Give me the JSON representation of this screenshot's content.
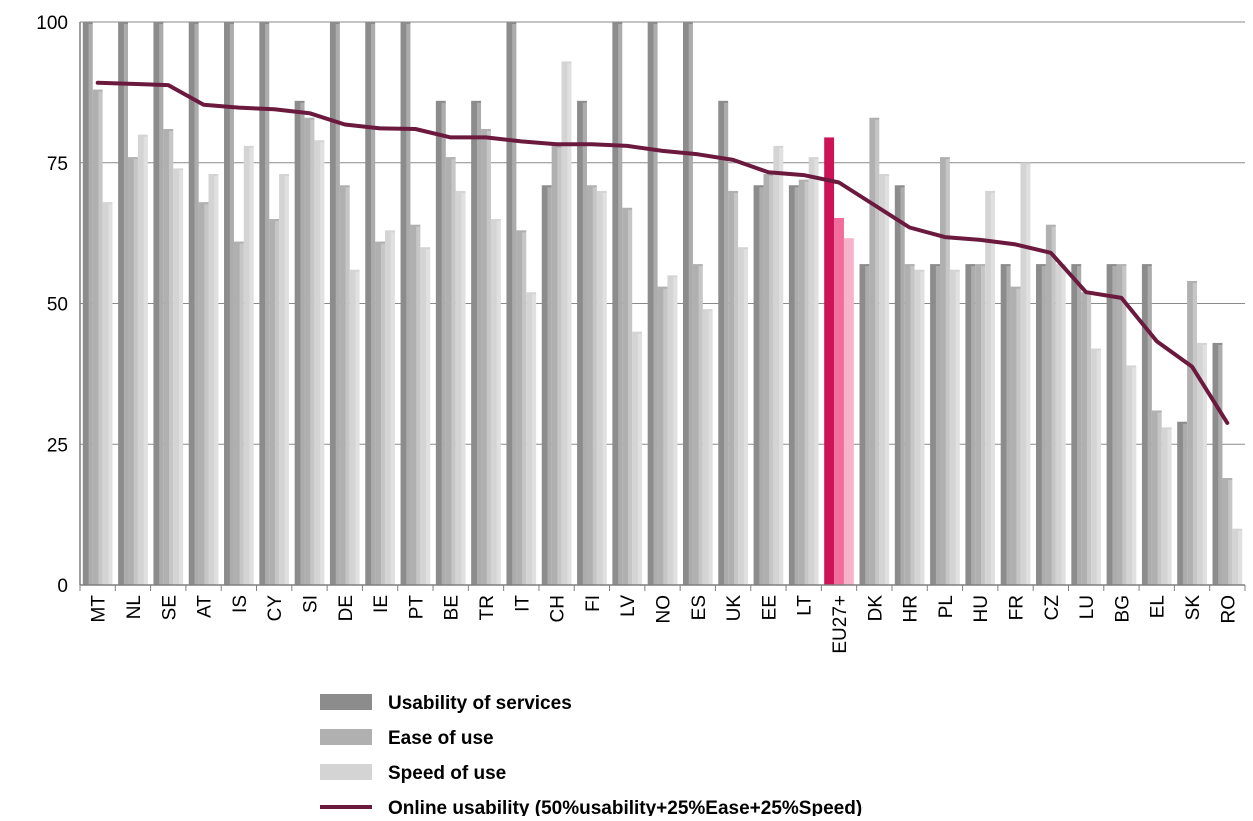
{
  "chart_data": {
    "type": "bar",
    "categories": [
      "MT",
      "NL",
      "SE",
      "AT",
      "IS",
      "CY",
      "SI",
      "DE",
      "IE",
      "PT",
      "BE",
      "TR",
      "IT",
      "CH",
      "FI",
      "LV",
      "NO",
      "ES",
      "UK",
      "EE",
      "LT",
      "EU27+",
      "DK",
      "HR",
      "PL",
      "HU",
      "FR",
      "CZ",
      "LU",
      "BG",
      "EL",
      "SK",
      "RO"
    ],
    "highlight_category": "EU27+",
    "series": [
      {
        "name": "Usability of services",
        "type": "bar",
        "color": "#8c8c8c",
        "highlight_color": "#cc1456",
        "values": [
          100,
          100,
          100,
          100,
          100,
          100,
          86,
          100,
          100,
          100,
          86,
          86,
          100,
          71,
          86,
          100,
          100,
          100,
          86,
          71,
          71,
          79.5,
          57,
          71,
          57,
          57,
          57,
          57,
          57,
          57,
          57,
          29,
          43
        ]
      },
      {
        "name": "Ease of use",
        "type": "bar",
        "color": "#b0b0b0",
        "highlight_color": "#f26d9a",
        "values": [
          88,
          76,
          81,
          68,
          61,
          65,
          83,
          71,
          61,
          64,
          76,
          81,
          63,
          78,
          71,
          67,
          53,
          57,
          70,
          73,
          72,
          65.2,
          83,
          57,
          76,
          57,
          53,
          64,
          52,
          57,
          31,
          54,
          19
        ]
      },
      {
        "name": "Speed of use",
        "type": "bar",
        "color": "#d4d4d4",
        "highlight_color": "#f7b3c9",
        "values": [
          68,
          80,
          74,
          73,
          78,
          73,
          79,
          56,
          63,
          60,
          70,
          65,
          52,
          93,
          70,
          45,
          55,
          49,
          60,
          78,
          76,
          61.6,
          73,
          56,
          56,
          70,
          75,
          57,
          42,
          39,
          28,
          43,
          10
        ]
      },
      {
        "name": "Online usability (50%usability+25%Ease+25%Speed)",
        "type": "line",
        "color": "#6b1a3e",
        "values": [
          89.2,
          89.0,
          88.8,
          85.3,
          84.8,
          84.5,
          83.8,
          81.8,
          81.1,
          81.0,
          79.5,
          79.5,
          78.8,
          78.3,
          78.3,
          78.0,
          77.1,
          76.5,
          75.5,
          73.3,
          72.8,
          71.5,
          67.5,
          63.5,
          61.8,
          61.3,
          60.5,
          59.0,
          52.0,
          51.0,
          43.3,
          38.8,
          28.8
        ]
      }
    ],
    "ylim": [
      0,
      100
    ],
    "yticks": [
      0,
      25,
      50,
      75,
      100
    ],
    "xlabel": "",
    "ylabel": "",
    "title": "",
    "grid": true,
    "legend_position": "bottom"
  }
}
